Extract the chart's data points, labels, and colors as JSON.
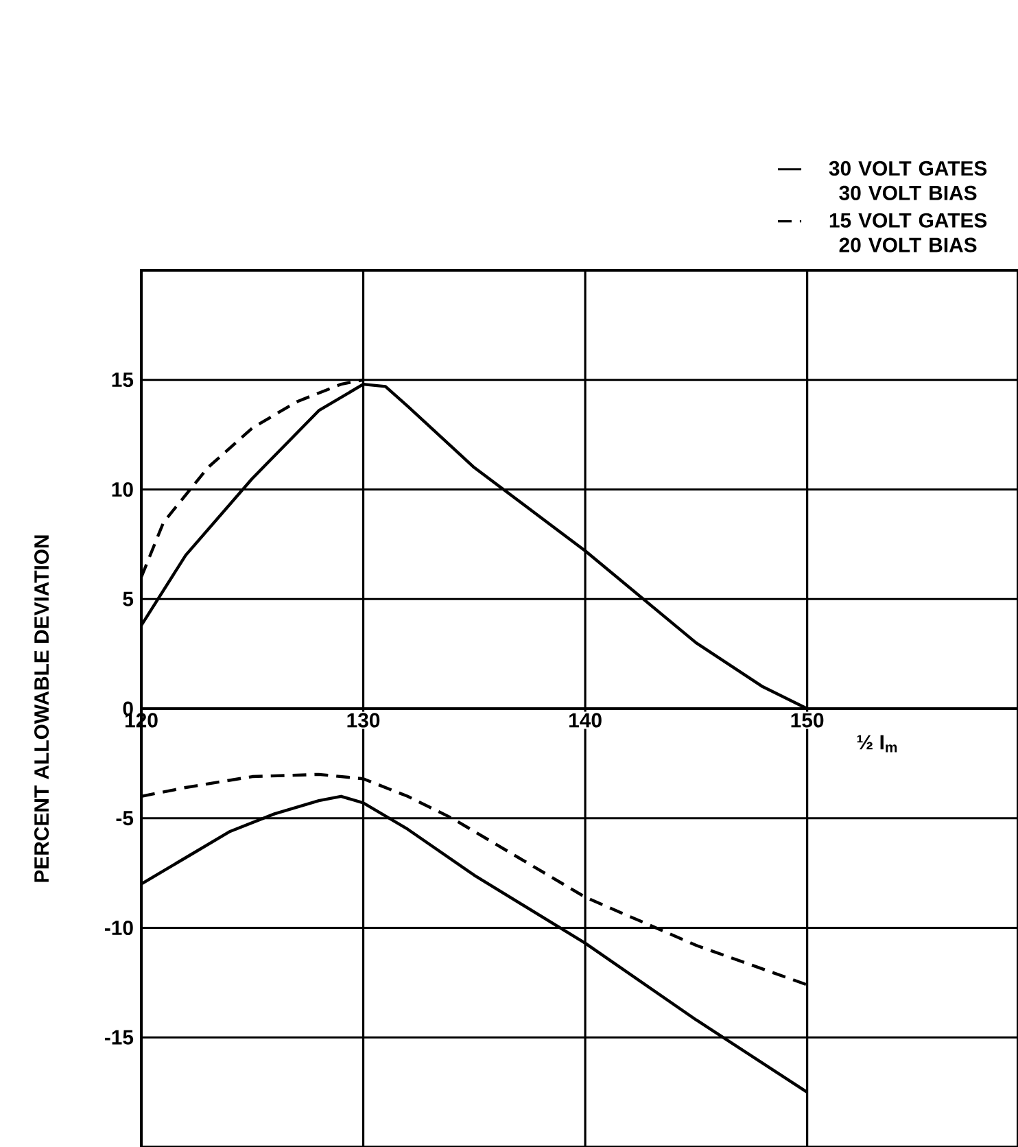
{
  "chart_data": {
    "type": "line",
    "xlabel": "½ I$_{m}$",
    "ylabel": "PERCENT ALLOWABLE DEVIATION",
    "xlim": [
      120,
      159.5
    ],
    "xticks": [
      120,
      130,
      140,
      150
    ],
    "ylim": [
      -20,
      20
    ],
    "yticks": [
      -15,
      -10,
      -5,
      0,
      5,
      10,
      15
    ],
    "grid": true,
    "legend": "top right",
    "series": [
      {
        "name": "30 VOLT GATES 30 VOLT BIAS",
        "color": "#000000",
        "line_style": "solid",
        "x": [
          120,
          122,
          125,
          128,
          130,
          131,
          132,
          135,
          140,
          145,
          148,
          150
        ],
        "values": [
          3.8,
          7,
          10.5,
          13.6,
          14.8,
          14.7,
          13.8,
          11,
          7.2,
          3,
          1,
          0
        ]
      },
      {
        "name": "15 VOLT GATES 20 VOLT BIAS",
        "color": "#000000",
        "line_style": "dashed",
        "x": [
          120,
          121,
          123,
          125,
          127,
          129,
          130
        ],
        "values": [
          6,
          8.5,
          11,
          12.8,
          14,
          14.8,
          15
        ]
      },
      {
        "color": "#000000",
        "line_style": "solid",
        "x": [
          120,
          122,
          124,
          126,
          128,
          129,
          130,
          132,
          135,
          140,
          145,
          150
        ],
        "values": [
          -8,
          -6.8,
          -5.6,
          -4.8,
          -4.2,
          -4,
          -4.3,
          -5.5,
          -7.6,
          -10.7,
          -14.2,
          -17.5
        ]
      },
      {
        "color": "#000000",
        "line_style": "dashed",
        "x": [
          120,
          122,
          125,
          128,
          130,
          132,
          134,
          137,
          140,
          145,
          150
        ],
        "values": [
          -4,
          -3.6,
          -3.1,
          -3,
          -3.2,
          -4,
          -5,
          -6.8,
          -8.6,
          -10.8,
          -12.6
        ]
      }
    ]
  }
}
